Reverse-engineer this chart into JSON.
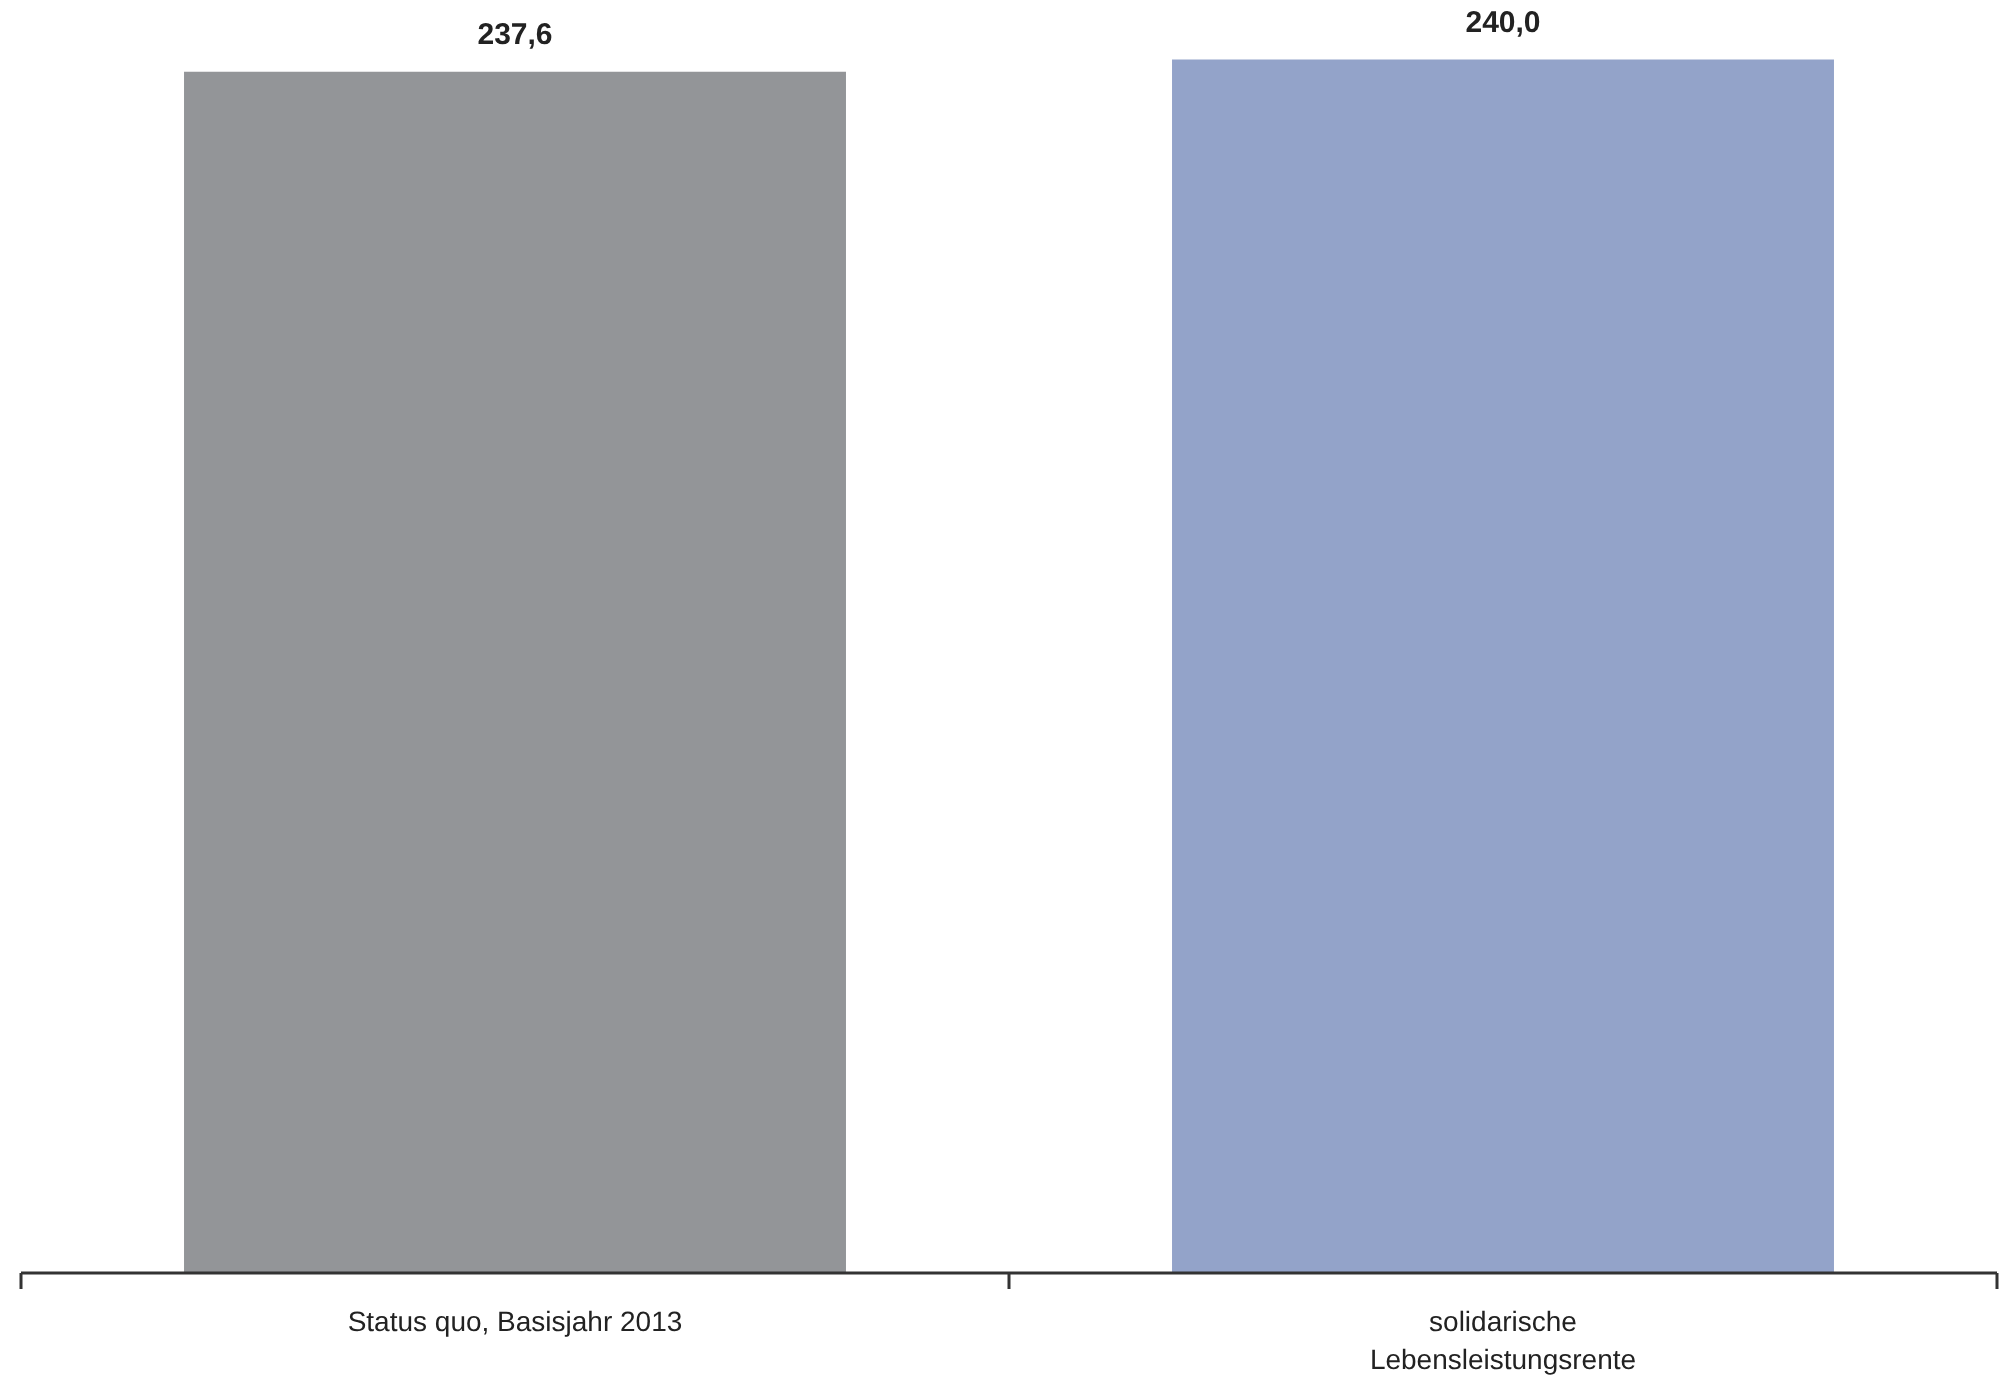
{
  "chart_data": {
    "type": "bar",
    "categories": [
      "Status quo, Basisjahr 2013",
      "solidarische Lebensleistungsrente"
    ],
    "values": [
      237.6,
      240.0
    ],
    "colors": [
      "#939598",
      "#93a3c9"
    ],
    "value_labels": [
      "237,6",
      "240,0"
    ]
  }
}
